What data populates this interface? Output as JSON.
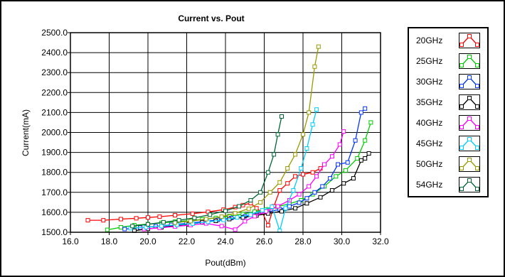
{
  "chart_data": {
    "type": "line",
    "title": "Current vs. Pout",
    "xlabel": "Pout(dBm)",
    "ylabel": "Current(mA)",
    "xlim": [
      16.0,
      32.0
    ],
    "ylim": [
      1500.0,
      2500.0
    ],
    "xticks": [
      "16.0",
      "18.0",
      "20.0",
      "22.0",
      "24.0",
      "26.0",
      "28.0",
      "30.0",
      "32.0"
    ],
    "yticks": [
      "1500.0",
      "1600.0",
      "1700.0",
      "1800.0",
      "1900.0",
      "2000.0",
      "2100.0",
      "2200.0",
      "2300.0",
      "2400.0",
      "2500.0"
    ],
    "grid": true,
    "legend_position": "right",
    "series": [
      {
        "name": "20GHz",
        "color": "#ff0000",
        "x": [
          16.9,
          17.7,
          18.6,
          19.4,
          20.0,
          20.6,
          21.4,
          22.3,
          23.1,
          23.9,
          24.5,
          24.9,
          25.3,
          25.6,
          25.9,
          26.2,
          26.5,
          26.8,
          27.2,
          27.6,
          28.0,
          28.5,
          28.9
        ],
        "y": [
          1560,
          1560,
          1566,
          1570,
          1574,
          1578,
          1585,
          1593,
          1602,
          1613,
          1626,
          1636,
          1646,
          1620,
          1600,
          1535,
          1630,
          1710,
          1745,
          1780,
          1790,
          1800,
          1820
        ]
      },
      {
        "name": "25GHz",
        "color": "#00cc00",
        "x": [
          17.9,
          18.6,
          19.3,
          20.0,
          20.7,
          21.4,
          22.1,
          22.8,
          23.5,
          24.2,
          24.9,
          25.5,
          26.1,
          26.7,
          27.3,
          27.9,
          28.5,
          29.1,
          29.7,
          30.2,
          30.8,
          31.2,
          31.5
        ],
        "y": [
          1512,
          1525,
          1535,
          1541,
          1547,
          1553,
          1558,
          1564,
          1572,
          1581,
          1591,
          1603,
          1615,
          1628,
          1643,
          1660,
          1690,
          1730,
          1780,
          1810,
          1870,
          1960,
          2050
        ]
      },
      {
        "name": "30GHz",
        "color": "#0033ff",
        "x": [
          18.8,
          19.6,
          20.4,
          21.2,
          22.0,
          22.8,
          23.6,
          24.3,
          25.0,
          25.6,
          26.2,
          26.8,
          27.3,
          27.8,
          28.2,
          28.6,
          29.0,
          29.4,
          29.8,
          30.3,
          30.7,
          31.0,
          31.2
        ],
        "y": [
          1516,
          1523,
          1530,
          1537,
          1545,
          1553,
          1562,
          1571,
          1580,
          1590,
          1602,
          1615,
          1630,
          1648,
          1670,
          1700,
          1730,
          1770,
          1840,
          1850,
          1960,
          2100,
          2120
        ]
      },
      {
        "name": "35GHz",
        "color": "#000000",
        "x": [
          19.3,
          20.0,
          20.7,
          21.4,
          22.1,
          22.8,
          23.5,
          24.2,
          24.9,
          25.6,
          26.2,
          26.9,
          27.6,
          28.2,
          28.9,
          29.5,
          30.1,
          30.6,
          31.0,
          31.2,
          31.4
        ],
        "y": [
          1508,
          1517,
          1525,
          1533,
          1540,
          1549,
          1557,
          1566,
          1574,
          1584,
          1594,
          1605,
          1620,
          1645,
          1675,
          1710,
          1745,
          1770,
          1860,
          1870,
          1895
        ]
      },
      {
        "name": "40GHz",
        "color": "#ff00ff",
        "x": [
          19.8,
          20.6,
          21.4,
          22.2,
          23.0,
          23.8,
          24.5,
          25.0,
          25.5,
          26.1,
          26.7,
          27.3,
          27.8,
          28.3,
          28.7,
          29.1,
          29.5,
          29.9,
          30.1
        ],
        "y": [
          1516,
          1522,
          1529,
          1536,
          1544,
          1531,
          1513,
          1555,
          1580,
          1605,
          1630,
          1660,
          1690,
          1730,
          1780,
          1840,
          1880,
          1940,
          2005
        ]
      },
      {
        "name": "45GHz",
        "color": "#00ccff",
        "x": [
          19.1,
          19.9,
          20.7,
          21.5,
          22.3,
          23.1,
          23.9,
          24.6,
          25.3,
          25.9,
          26.4,
          26.8,
          27.1,
          27.5,
          27.9,
          28.2,
          28.5,
          28.7
        ],
        "y": [
          1520,
          1525,
          1531,
          1537,
          1543,
          1552,
          1562,
          1574,
          1588,
          1610,
          1628,
          1508,
          1620,
          1710,
          1820,
          1920,
          2040,
          2115
        ]
      },
      {
        "name": "50GHz",
        "color": "#999900",
        "x": [
          21.4,
          22.2,
          23.0,
          23.8,
          24.5,
          25.2,
          25.8,
          26.3,
          26.8,
          27.2,
          27.6,
          28.0,
          28.3,
          28.6,
          28.8
        ],
        "y": [
          1548,
          1556,
          1566,
          1578,
          1595,
          1618,
          1650,
          1700,
          1750,
          1820,
          1890,
          1990,
          2100,
          2330,
          2430
        ]
      },
      {
        "name": "54GHz",
        "color": "#006633",
        "x": [
          19.2,
          20.0,
          20.8,
          21.6,
          22.4,
          23.2,
          24.0,
          24.7,
          25.3,
          25.8,
          26.2,
          26.5,
          26.7,
          26.9
        ],
        "y": [
          1531,
          1540,
          1550,
          1560,
          1572,
          1588,
          1607,
          1630,
          1660,
          1700,
          1800,
          1890,
          1990,
          2080
        ]
      }
    ]
  }
}
